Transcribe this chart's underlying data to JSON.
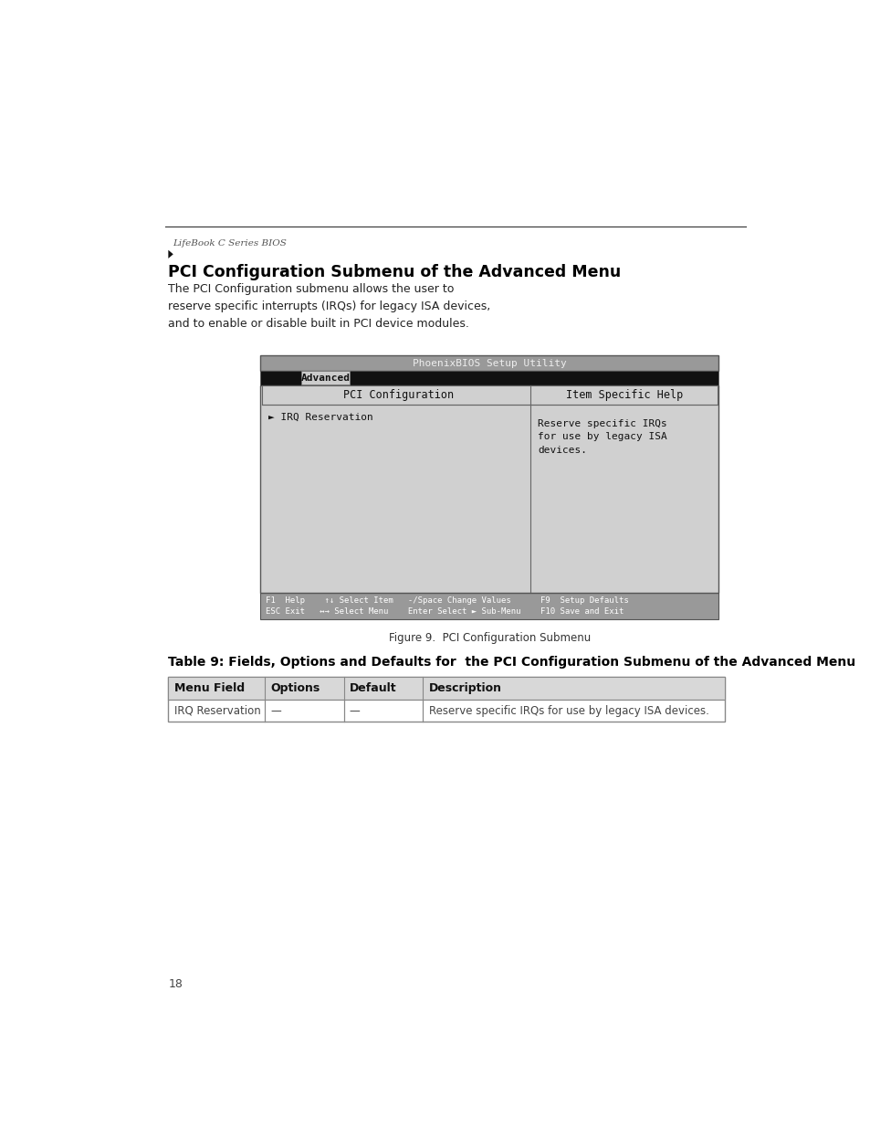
{
  "page_header": "LifeBook C Series BIOS",
  "section_title": "PCI Configuration Submenu of the Advanced Menu",
  "section_body": "The PCI Configuration submenu allows the user to\nreserve specific interrupts (IRQs) for legacy ISA devices,\nand to enable or disable built in PCI device modules.",
  "bios_title": "PhoenixBIOS Setup Utility",
  "bios_tab": "Advanced",
  "bios_left_header": "PCI Configuration",
  "bios_right_header": "Item Specific Help",
  "bios_menu_item": "► IRQ Reservation",
  "bios_help_text": "Reserve specific IRQs\nfor use by legacy ISA\ndevices.",
  "bios_footer_line1": "F1  Help    ↑↓ Select Item   -/Space Change Values      F9  Setup Defaults",
  "bios_footer_line2": "ESC Exit   ↔→ Select Menu    Enter Select ► Sub-Menu    F10 Save and Exit",
  "figure_caption": "Figure 9.  PCI Configuration Submenu",
  "table_title": "Table 9: Fields, Options and Defaults for  the PCI Configuration Submenu of the Advanced Menu",
  "table_headers": [
    "Menu Field",
    "Options",
    "Default",
    "Description"
  ],
  "table_row": [
    "IRQ Reservation",
    "—",
    "—",
    "Reserve specific IRQs for use by legacy ISA devices."
  ],
  "page_number": "18",
  "bg_color": "#ffffff",
  "header_line_color": "#333333",
  "header_text_color": "#555555",
  "title_color": "#000000",
  "body_color": "#222222",
  "bios_title_bg": "#999999",
  "bios_tab_bar_bg": "#111111",
  "bios_tab_highlight": "#cccccc",
  "bios_content_bg": "#d0d0d0",
  "bios_header_border": "#666666",
  "bios_divider_color": "#666666",
  "bios_footer_bg": "#999999",
  "bios_text_color": "#111111",
  "bios_footer_text": "#ffffff",
  "table_header_bg": "#d8d8d8",
  "table_border_color": "#888888",
  "figure_caption_color": "#333333"
}
